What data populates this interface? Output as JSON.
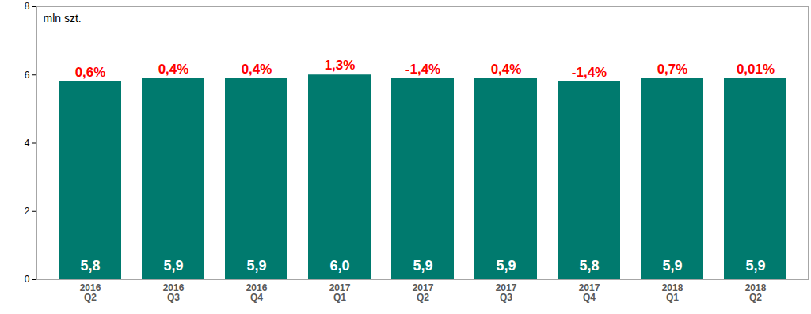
{
  "chart_data": {
    "type": "bar",
    "ylabel": "mln szt.",
    "categories": [
      "2016\nQ2",
      "2016\nQ3",
      "2016\nQ4",
      "2017\nQ1",
      "2017\nQ2",
      "2017\nQ3",
      "2017\nQ4",
      "2018\nQ1",
      "2018\nQ2"
    ],
    "values": [
      5.8,
      5.9,
      5.9,
      6.0,
      5.9,
      5.9,
      5.8,
      5.9,
      5.9
    ],
    "value_labels": [
      "5,8",
      "5,9",
      "5,9",
      "6,0",
      "5,9",
      "5,9",
      "5,8",
      "5,9",
      "5,9"
    ],
    "changes": [
      0.6,
      0.4,
      0.4,
      1.3,
      -1.4,
      0.4,
      -1.4,
      0.7,
      0.01
    ],
    "change_labels": [
      "0,6%",
      "0,4%",
      "0,4%",
      "1,3%",
      "-1,4%",
      "0,4%",
      "-1,4%",
      "0,7%",
      "0,01%"
    ],
    "color": "#007a6e",
    "data_labels": true,
    "ylim": [
      0,
      8
    ],
    "yticks": [
      0,
      2,
      4,
      6,
      8
    ],
    "grid": false
  }
}
